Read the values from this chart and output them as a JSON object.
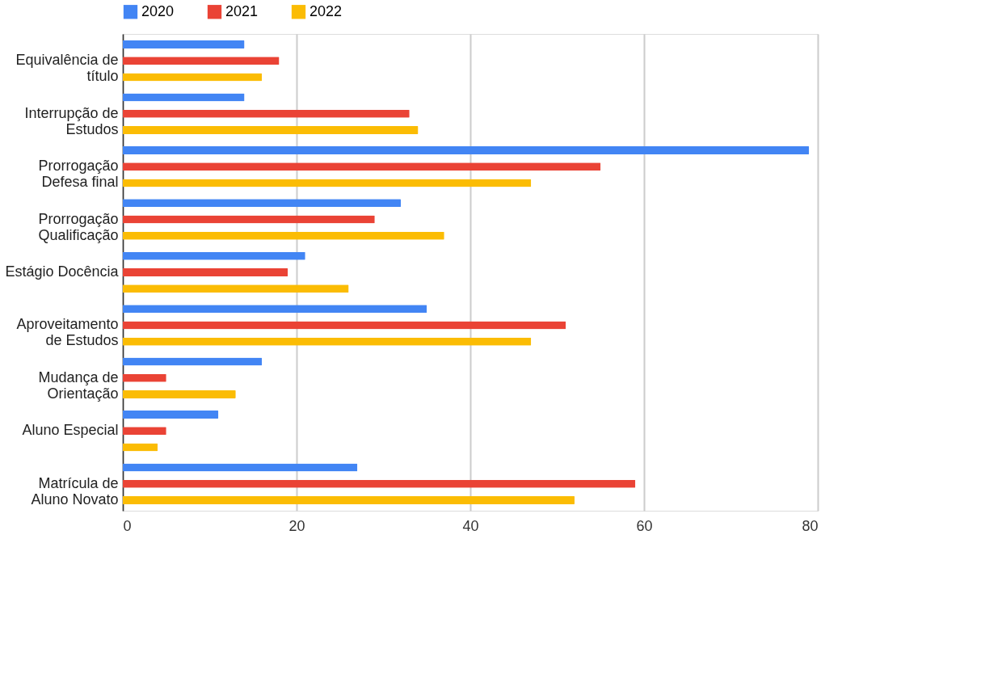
{
  "chart_data": {
    "type": "bar",
    "orientation": "horizontal",
    "categories": [
      "Equivalência  de\ntítulo",
      "Interrupção de\nEstudos",
      "Prorrogação\nDefesa final",
      "Prorrogação\nQualificação",
      "Estágio Docência",
      "Aproveitamento\nde Estudos",
      "Mudança de\nOrientação",
      "Aluno Especial",
      "Matrícula de\nAluno Novato"
    ],
    "series": [
      {
        "name": "2020",
        "color": "#4285f4",
        "values": [
          14,
          14,
          79,
          32,
          21,
          35,
          16,
          11,
          27
        ]
      },
      {
        "name": "2021",
        "color": "#ea4335",
        "values": [
          18,
          33,
          55,
          29,
          19,
          51,
          5,
          5,
          59
        ]
      },
      {
        "name": "2022",
        "color": "#fbbc04",
        "values": [
          16,
          34,
          47,
          37,
          26,
          47,
          13,
          4,
          52
        ]
      }
    ],
    "xlim": [
      0,
      80
    ],
    "xticks": [
      0,
      20,
      40,
      60,
      80
    ],
    "grid": "x",
    "legend": "top"
  }
}
